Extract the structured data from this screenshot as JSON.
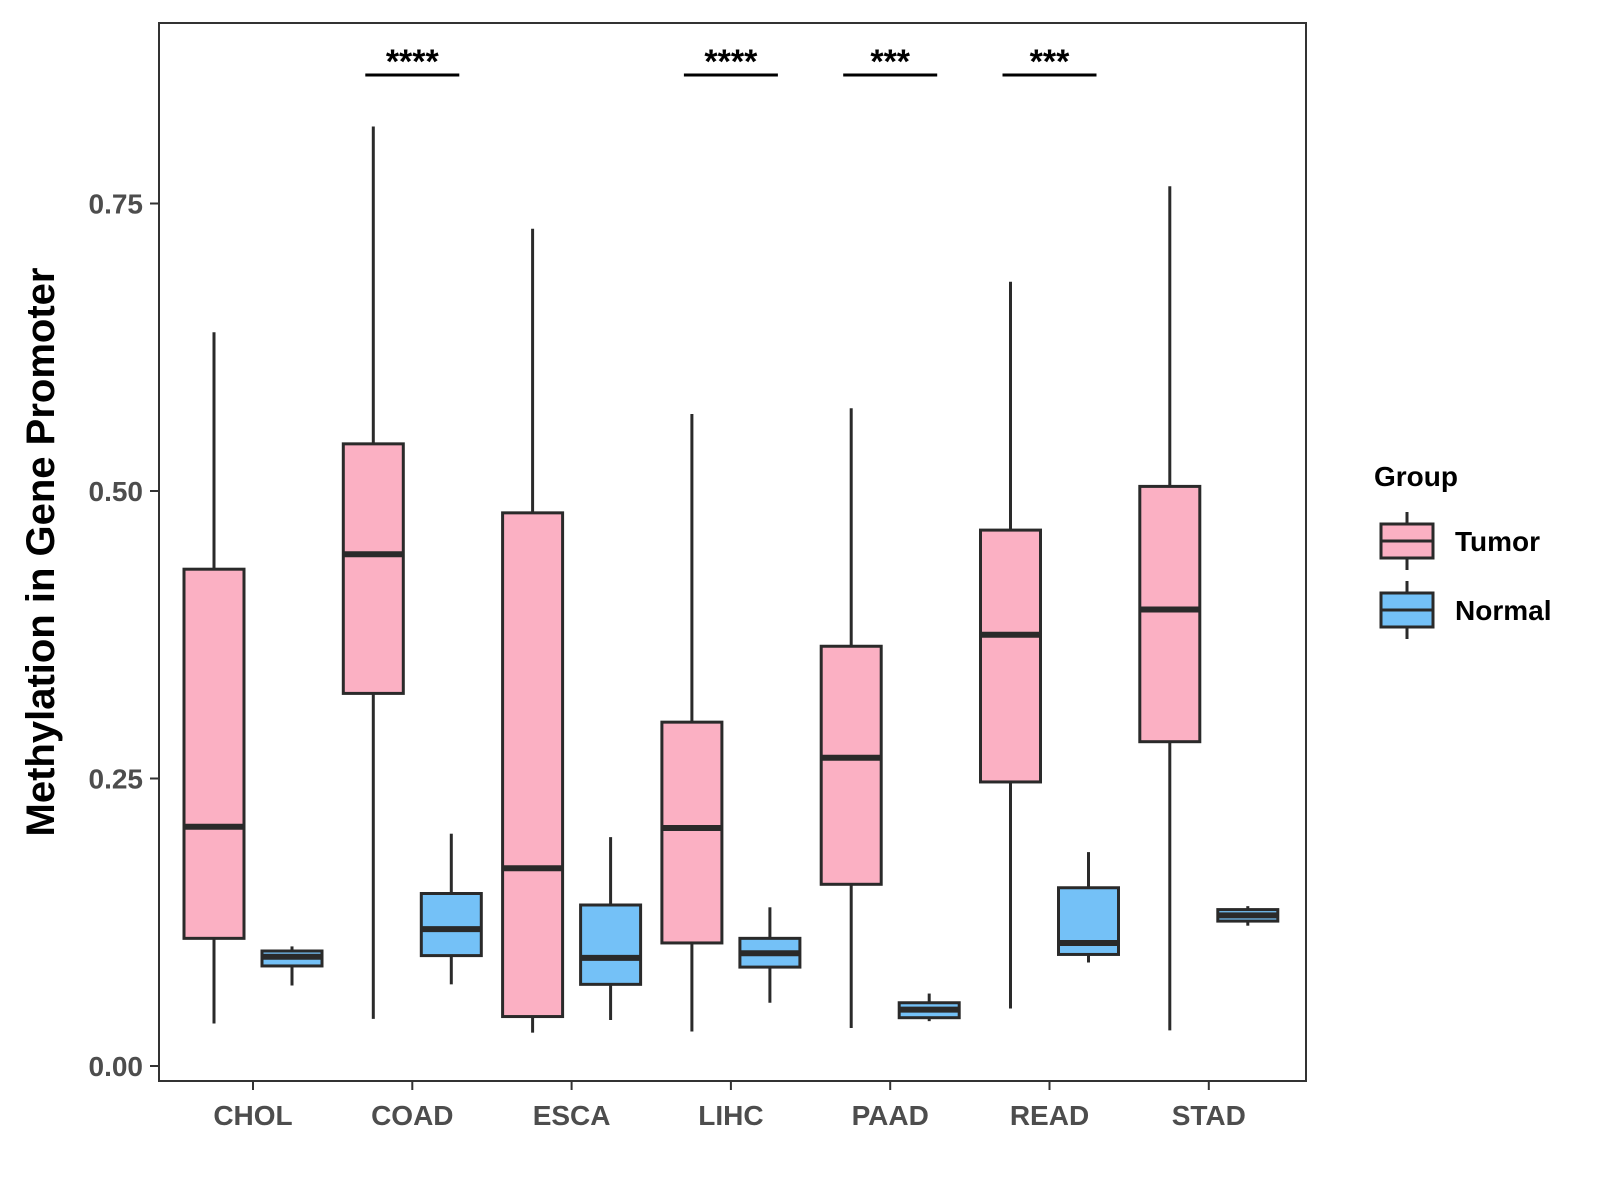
{
  "chart_data": {
    "type": "boxplot",
    "title": "",
    "xlabel": "",
    "ylabel": "Methylation in Gene Promoter",
    "ylim": [
      -0.015,
      0.905
    ],
    "yticks": [
      0.0,
      0.25,
      0.5,
      0.75
    ],
    "ytick_labels": [
      "0.00",
      "0.25",
      "0.50",
      "0.75"
    ],
    "categories": [
      "CHOL",
      "COAD",
      "ESCA",
      "LIHC",
      "PAAD",
      "READ",
      "STAD"
    ],
    "series": [
      {
        "name": "Tumor",
        "color": "#fbb0c3",
        "boxes": [
          {
            "min": 0.037,
            "q1": 0.111,
            "median": 0.208,
            "q3": 0.432,
            "max": 0.638
          },
          {
            "min": 0.041,
            "q1": 0.324,
            "median": 0.445,
            "q3": 0.541,
            "max": 0.817
          },
          {
            "min": 0.029,
            "q1": 0.043,
            "median": 0.172,
            "q3": 0.481,
            "max": 0.728
          },
          {
            "min": 0.03,
            "q1": 0.107,
            "median": 0.207,
            "q3": 0.299,
            "max": 0.567
          },
          {
            "min": 0.033,
            "q1": 0.158,
            "median": 0.268,
            "q3": 0.365,
            "max": 0.572
          },
          {
            "min": 0.05,
            "q1": 0.247,
            "median": 0.375,
            "q3": 0.466,
            "max": 0.682
          },
          {
            "min": 0.031,
            "q1": 0.282,
            "median": 0.397,
            "q3": 0.504,
            "max": 0.765
          }
        ]
      },
      {
        "name": "Normal",
        "color": "#74c1f7",
        "boxes": [
          {
            "min": 0.07,
            "q1": 0.087,
            "median": 0.095,
            "q3": 0.1,
            "max": 0.104
          },
          {
            "min": 0.071,
            "q1": 0.096,
            "median": 0.119,
            "q3": 0.15,
            "max": 0.202
          },
          {
            "min": 0.04,
            "q1": 0.071,
            "median": 0.094,
            "q3": 0.14,
            "max": 0.199
          },
          {
            "min": 0.055,
            "q1": 0.086,
            "median": 0.098,
            "q3": 0.111,
            "max": 0.138
          },
          {
            "min": 0.039,
            "q1": 0.042,
            "median": 0.049,
            "q3": 0.055,
            "max": 0.063
          },
          {
            "min": 0.09,
            "q1": 0.097,
            "median": 0.107,
            "q3": 0.155,
            "max": 0.186
          },
          {
            "min": 0.122,
            "q1": 0.126,
            "median": 0.131,
            "q3": 0.136,
            "max": 0.139
          }
        ]
      }
    ],
    "significance": [
      {
        "category": "COAD",
        "label": "****"
      },
      {
        "category": "LIHC",
        "label": "****"
      },
      {
        "category": "PAAD",
        "label": "***"
      },
      {
        "category": "READ",
        "label": "***"
      }
    ],
    "legend": {
      "title": "Group",
      "position": "right",
      "items": [
        "Tumor",
        "Normal"
      ]
    },
    "grid": false
  }
}
